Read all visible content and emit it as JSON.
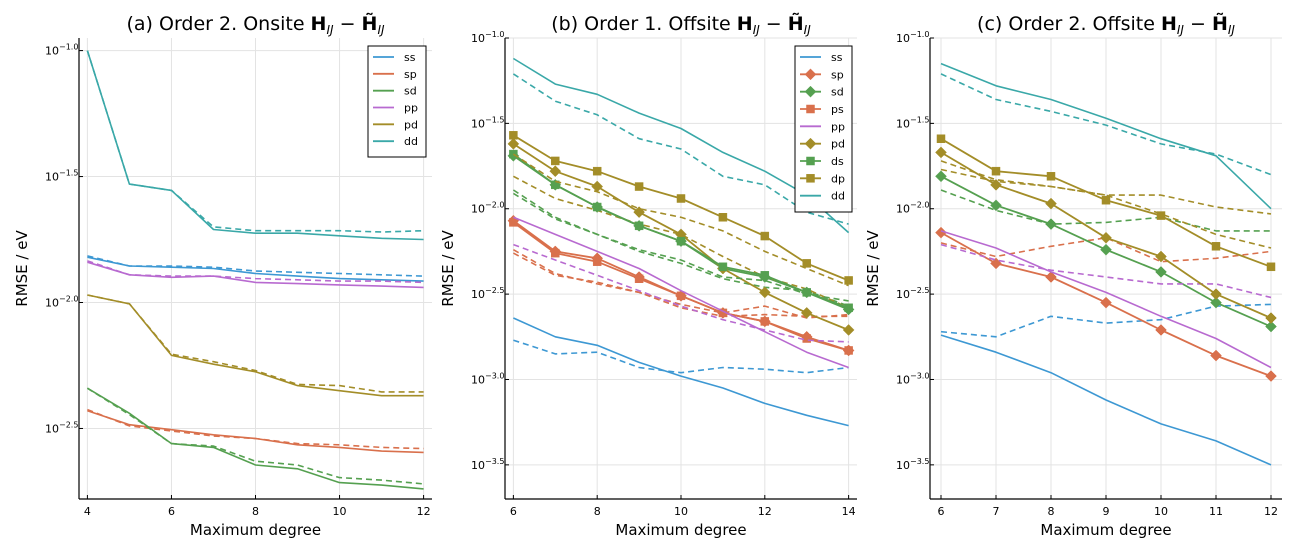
{
  "figure": {
    "titles": [
      "(a) Order 2. Onsite H_IJ − H̃_IJ",
      "(b) Order 1. Offsite H_IJ − H̃_IJ",
      "(c) Order 2. Offsite H_IJ − H̃_IJ"
    ]
  },
  "colors": {
    "ss": "#3d98d3",
    "sp": "#d9704c",
    "sd": "#55a050",
    "pp": "#b86ad0",
    "pd": "#a38d28",
    "dd": "#3aa8a8",
    "ps": "#d9704c",
    "ds": "#55a050",
    "dp": "#a38d28"
  },
  "chart_data": [
    {
      "type": "line",
      "title": "(a) Order 2. Onsite H_IJ − H̃_IJ",
      "xlabel": "Maximum degree",
      "ylabel": "RMSE / eV",
      "yscale": "log10",
      "xlim": [
        3.8,
        12.2
      ],
      "ylim": [
        -2.78,
        -0.95
      ],
      "xticks": [
        4,
        6,
        8,
        10,
        12
      ],
      "yticks": [
        "10^-1.0",
        "10^-1.5",
        "10^-2.0",
        "10^-2.5"
      ],
      "legend": "top-right",
      "grid": true,
      "x": [
        4,
        5,
        6,
        7,
        8,
        9,
        10,
        11,
        12
      ],
      "series": [
        {
          "name": "ss",
          "style": "solid",
          "marker": "none",
          "values_log10": [
            -1.82,
            -1.855,
            -1.86,
            -1.865,
            -1.885,
            -1.895,
            -1.905,
            -1.91,
            -1.915
          ]
        },
        {
          "name": "ss",
          "style": "dashed",
          "marker": "none",
          "legend": false,
          "values_log10": [
            -1.815,
            -1.855,
            -1.855,
            -1.86,
            -1.875,
            -1.88,
            -1.885,
            -1.89,
            -1.895
          ]
        },
        {
          "name": "sp",
          "style": "solid",
          "marker": "none",
          "values_log10": [
            -2.43,
            -2.485,
            -2.505,
            -2.525,
            -2.54,
            -2.565,
            -2.575,
            -2.59,
            -2.595
          ]
        },
        {
          "name": "sp",
          "style": "dashed",
          "marker": "none",
          "legend": false,
          "values_log10": [
            -2.425,
            -2.49,
            -2.51,
            -2.53,
            -2.54,
            -2.56,
            -2.565,
            -2.575,
            -2.58
          ]
        },
        {
          "name": "sd",
          "style": "solid",
          "marker": "none",
          "values_log10": [
            -2.34,
            -2.44,
            -2.56,
            -2.575,
            -2.645,
            -2.66,
            -2.715,
            -2.725,
            -2.74
          ]
        },
        {
          "name": "sd",
          "style": "dashed",
          "marker": "none",
          "legend": false,
          "values_log10": [
            -2.34,
            -2.445,
            -2.56,
            -2.57,
            -2.63,
            -2.645,
            -2.695,
            -2.705,
            -2.72
          ]
        },
        {
          "name": "pp",
          "style": "solid",
          "marker": "none",
          "values_log10": [
            -1.84,
            -1.89,
            -1.9,
            -1.895,
            -1.92,
            -1.925,
            -1.93,
            -1.935,
            -1.94
          ]
        },
        {
          "name": "pp",
          "style": "dashed",
          "marker": "none",
          "legend": false,
          "values_log10": [
            -1.835,
            -1.89,
            -1.895,
            -1.895,
            -1.905,
            -1.91,
            -1.915,
            -1.915,
            -1.92
          ]
        },
        {
          "name": "pd",
          "style": "solid",
          "marker": "none",
          "values_log10": [
            -1.97,
            -2.005,
            -2.21,
            -2.245,
            -2.275,
            -2.33,
            -2.35,
            -2.37,
            -2.37
          ]
        },
        {
          "name": "pd",
          "style": "dashed",
          "marker": "none",
          "legend": false,
          "values_log10": [
            -1.97,
            -2.005,
            -2.205,
            -2.235,
            -2.27,
            -2.325,
            -2.33,
            -2.355,
            -2.355
          ]
        },
        {
          "name": "dd",
          "style": "solid",
          "marker": "none",
          "values_log10": [
            -1.0,
            -1.53,
            -1.555,
            -1.71,
            -1.725,
            -1.725,
            -1.735,
            -1.745,
            -1.75
          ]
        },
        {
          "name": "dd",
          "style": "dashed",
          "marker": "none",
          "legend": false,
          "values_log10": [
            -1.0,
            -1.53,
            -1.555,
            -1.7,
            -1.715,
            -1.715,
            -1.715,
            -1.72,
            -1.715
          ]
        }
      ]
    },
    {
      "type": "line",
      "title": "(b) Order 1. Offsite H_IJ − H̃_IJ",
      "xlabel": "Maximum degree",
      "ylabel": "RMSE / eV",
      "yscale": "log10",
      "xlim": [
        5.8,
        14.2
      ],
      "ylim": [
        -3.7,
        -1.0
      ],
      "xticks": [
        6,
        8,
        10,
        12,
        14
      ],
      "yticks": [
        "10^-1.0",
        "10^-1.5",
        "10^-2.0",
        "10^-2.5",
        "10^-3.0",
        "10^-3.5"
      ],
      "legend": "top-right",
      "grid": true,
      "x": [
        6,
        7,
        8,
        9,
        10,
        11,
        12,
        13,
        14
      ],
      "series": [
        {
          "name": "ss",
          "style": "solid",
          "marker": "none",
          "values_log10": [
            -2.64,
            -2.75,
            -2.8,
            -2.9,
            -2.98,
            -3.05,
            -3.14,
            -3.21,
            -3.27
          ]
        },
        {
          "name": "ss",
          "style": "dashed",
          "marker": "none",
          "legend": false,
          "values_log10": [
            -2.77,
            -2.85,
            -2.84,
            -2.93,
            -2.96,
            -2.93,
            -2.94,
            -2.96,
            -2.93
          ]
        },
        {
          "name": "sp",
          "style": "solid",
          "marker": "diamond",
          "values_log10": [
            -2.07,
            -2.25,
            -2.29,
            -2.4,
            -2.51,
            -2.61,
            -2.66,
            -2.75,
            -2.83
          ]
        },
        {
          "name": "sp",
          "style": "dashed",
          "marker": "none",
          "legend": false,
          "values_log10": [
            -2.24,
            -2.38,
            -2.44,
            -2.49,
            -2.58,
            -2.63,
            -2.62,
            -2.63,
            -2.63
          ]
        },
        {
          "name": "sd",
          "style": "solid",
          "marker": "diamond",
          "values_log10": [
            -1.69,
            -1.86,
            -1.99,
            -2.1,
            -2.19,
            -2.35,
            -2.4,
            -2.49,
            -2.59
          ]
        },
        {
          "name": "sd",
          "style": "dashed",
          "marker": "none",
          "legend": false,
          "values_log10": [
            -1.89,
            -2.05,
            -2.15,
            -2.25,
            -2.32,
            -2.41,
            -2.46,
            -2.48,
            -2.57
          ]
        },
        {
          "name": "ps",
          "style": "solid",
          "marker": "square",
          "values_log10": [
            -2.08,
            -2.26,
            -2.31,
            -2.41,
            -2.51,
            -2.61,
            -2.66,
            -2.76,
            -2.83
          ]
        },
        {
          "name": "ps",
          "style": "dashed",
          "marker": "none",
          "legend": false,
          "values_log10": [
            -2.26,
            -2.39,
            -2.43,
            -2.49,
            -2.56,
            -2.61,
            -2.57,
            -2.64,
            -2.62
          ]
        },
        {
          "name": "pp",
          "style": "solid",
          "marker": "none",
          "values_log10": [
            -2.05,
            -2.15,
            -2.25,
            -2.35,
            -2.48,
            -2.6,
            -2.72,
            -2.84,
            -2.93
          ]
        },
        {
          "name": "pp",
          "style": "dashed",
          "marker": "none",
          "legend": false,
          "values_log10": [
            -2.21,
            -2.3,
            -2.39,
            -2.48,
            -2.57,
            -2.65,
            -2.71,
            -2.77,
            -2.78
          ]
        },
        {
          "name": "pd",
          "style": "solid",
          "marker": "diamond",
          "values_log10": [
            -1.62,
            -1.78,
            -1.87,
            -2.02,
            -2.15,
            -2.35,
            -2.49,
            -2.61,
            -2.71
          ]
        },
        {
          "name": "pd",
          "style": "dashed",
          "marker": "none",
          "legend": false,
          "values_log10": [
            -1.81,
            -1.94,
            -2.01,
            -2.09,
            -2.15,
            -2.28,
            -2.4,
            -2.47,
            -2.58
          ]
        },
        {
          "name": "ds",
          "style": "solid",
          "marker": "square",
          "values_log10": [
            -1.68,
            -1.86,
            -1.99,
            -2.1,
            -2.19,
            -2.34,
            -2.39,
            -2.49,
            -2.58
          ]
        },
        {
          "name": "ds",
          "style": "dashed",
          "marker": "none",
          "legend": false,
          "values_log10": [
            -1.91,
            -2.06,
            -2.15,
            -2.24,
            -2.3,
            -2.4,
            -2.42,
            -2.5,
            -2.54
          ]
        },
        {
          "name": "dp",
          "style": "solid",
          "marker": "square",
          "values_log10": [
            -1.57,
            -1.72,
            -1.78,
            -1.87,
            -1.94,
            -2.05,
            -2.16,
            -2.32,
            -2.42
          ]
        },
        {
          "name": "dp",
          "style": "dashed",
          "marker": "none",
          "legend": false,
          "values_log10": [
            -1.68,
            -1.84,
            -1.9,
            -2.0,
            -2.05,
            -2.13,
            -2.25,
            -2.35,
            -2.45
          ]
        },
        {
          "name": "dd",
          "style": "solid",
          "marker": "none",
          "values_log10": [
            -1.12,
            -1.27,
            -1.33,
            -1.44,
            -1.53,
            -1.67,
            -1.78,
            -1.92,
            -2.14
          ]
        },
        {
          "name": "dd",
          "style": "dashed",
          "marker": "none",
          "legend": false,
          "values_log10": [
            -1.21,
            -1.37,
            -1.45,
            -1.59,
            -1.65,
            -1.81,
            -1.86,
            -2.02,
            -2.09
          ]
        }
      ]
    },
    {
      "type": "line",
      "title": "(c) Order 2. Offsite H_IJ − H̃_IJ",
      "xlabel": "Maximum degree",
      "ylabel": "RMSE / eV",
      "yscale": "log10",
      "xlim": [
        5.8,
        12.2
      ],
      "ylim": [
        -3.7,
        -1.0
      ],
      "xticks": [
        6,
        7,
        8,
        9,
        10,
        11,
        12
      ],
      "yticks": [
        "10^-1.0",
        "10^-1.5",
        "10^-2.0",
        "10^-2.5",
        "10^-3.0",
        "10^-3.5"
      ],
      "legend": "none",
      "grid": true,
      "x": [
        6,
        7,
        8,
        9,
        10,
        11,
        12
      ],
      "series": [
        {
          "name": "ss",
          "style": "solid",
          "marker": "none",
          "values_log10": [
            -2.74,
            -2.84,
            -2.96,
            -3.12,
            -3.26,
            -3.36,
            -3.5
          ]
        },
        {
          "name": "ss",
          "style": "dashed",
          "marker": "none",
          "values_log10": [
            -2.72,
            -2.75,
            -2.63,
            -2.67,
            -2.65,
            -2.57,
            -2.56
          ]
        },
        {
          "name": "sp",
          "style": "solid",
          "marker": "diamond",
          "values_log10": [
            -2.14,
            -2.32,
            -2.4,
            -2.55,
            -2.71,
            -2.86,
            -2.98
          ]
        },
        {
          "name": "sp",
          "style": "dashed",
          "marker": "none",
          "values_log10": [
            -2.2,
            -2.28,
            -2.22,
            -2.17,
            -2.31,
            -2.29,
            -2.25
          ]
        },
        {
          "name": "sd",
          "style": "solid",
          "marker": "diamond",
          "values_log10": [
            -1.81,
            -1.98,
            -2.09,
            -2.24,
            -2.37,
            -2.55,
            -2.69
          ]
        },
        {
          "name": "sd",
          "style": "dashed",
          "marker": "none",
          "values_log10": [
            -1.89,
            -2.01,
            -2.09,
            -2.08,
            -2.05,
            -2.13,
            -2.13
          ]
        },
        {
          "name": "pp",
          "style": "solid",
          "marker": "none",
          "values_log10": [
            -2.13,
            -2.23,
            -2.37,
            -2.49,
            -2.63,
            -2.76,
            -2.93
          ]
        },
        {
          "name": "pp",
          "style": "dashed",
          "marker": "none",
          "values_log10": [
            -2.21,
            -2.3,
            -2.36,
            -2.4,
            -2.44,
            -2.44,
            -2.52
          ]
        },
        {
          "name": "pd",
          "style": "solid",
          "marker": "diamond",
          "values_log10": [
            -1.67,
            -1.86,
            -1.97,
            -2.17,
            -2.28,
            -2.5,
            -2.64
          ]
        },
        {
          "name": "pd",
          "style": "dashed",
          "marker": "none",
          "values_log10": [
            -1.72,
            -1.83,
            -1.87,
            -1.92,
            -2.03,
            -2.15,
            -2.23
          ]
        },
        {
          "name": "dp",
          "style": "solid",
          "marker": "square",
          "values_log10": [
            -1.59,
            -1.78,
            -1.81,
            -1.95,
            -2.04,
            -2.22,
            -2.34
          ]
        },
        {
          "name": "dp",
          "style": "dashed",
          "marker": "none",
          "values_log10": [
            -1.77,
            -1.84,
            -1.87,
            -1.92,
            -1.92,
            -1.99,
            -2.03
          ]
        },
        {
          "name": "dd",
          "style": "solid",
          "marker": "none",
          "values_log10": [
            -1.15,
            -1.28,
            -1.36,
            -1.47,
            -1.59,
            -1.69,
            -2.0
          ]
        },
        {
          "name": "dd",
          "style": "dashed",
          "marker": "none",
          "values_log10": [
            -1.21,
            -1.36,
            -1.43,
            -1.51,
            -1.62,
            -1.68,
            -1.8
          ]
        }
      ]
    }
  ]
}
